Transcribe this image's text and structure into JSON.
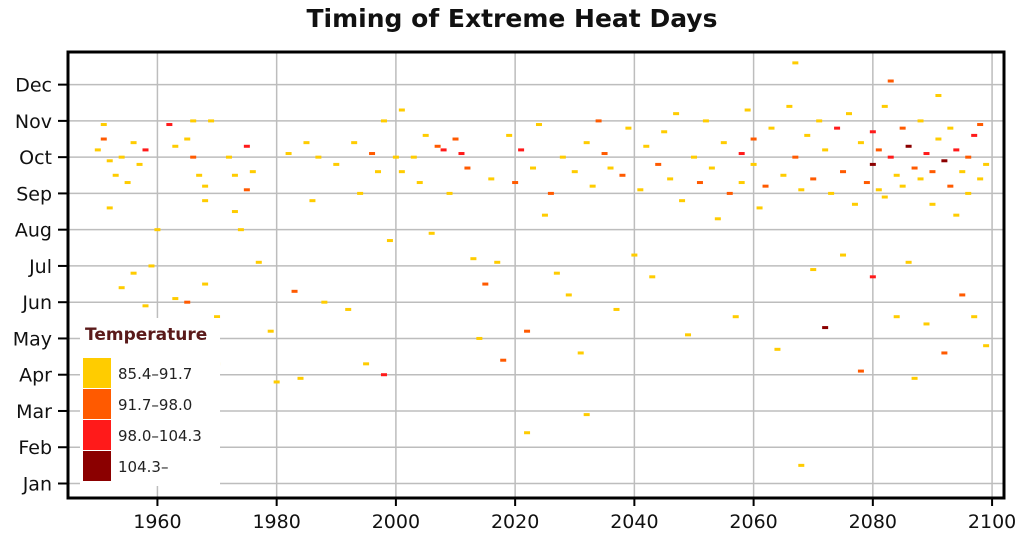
{
  "chart_data": {
    "type": "heatmap",
    "title": "Timing of Extreme Heat Days",
    "xlabel": "",
    "ylabel": "",
    "x_ticks": [
      1960,
      1980,
      2000,
      2020,
      2040,
      2060,
      2080,
      2100
    ],
    "x_range": [
      1945,
      2102
    ],
    "y_ticks": [
      "Jan",
      "Feb",
      "Mar",
      "Apr",
      "May",
      "Jun",
      "Jul",
      "Aug",
      "Sep",
      "Oct",
      "Nov",
      "Dec"
    ],
    "y_range": [
      0.6,
      12.9
    ],
    "grid": true,
    "legend": {
      "title": "Temperature",
      "position": "bottom-left",
      "entries": [
        {
          "label": "85.4–91.7",
          "color": "#ffcc00"
        },
        {
          "label": "91.7–98.0",
          "color": "#ff5a00"
        },
        {
          "label": "98.0–104.3",
          "color": "#ff1a1a"
        },
        {
          "label": "104.3–",
          "color": "#8b0000"
        }
      ]
    },
    "points": [
      [
        1950,
        10.2,
        0
      ],
      [
        1951,
        10.5,
        1
      ],
      [
        1952,
        9.9,
        0
      ],
      [
        1953,
        9.5,
        0
      ],
      [
        1952,
        8.6,
        0
      ],
      [
        1951,
        10.9,
        0
      ],
      [
        1954,
        10.0,
        0
      ],
      [
        1955,
        9.3,
        0
      ],
      [
        1956,
        10.4,
        0
      ],
      [
        1957,
        9.8,
        0
      ],
      [
        1958,
        10.2,
        2
      ],
      [
        1954,
        6.4,
        0
      ],
      [
        1956,
        6.8,
        0
      ],
      [
        1958,
        5.9,
        0
      ],
      [
        1959,
        7.0,
        0
      ],
      [
        1960,
        8.0,
        0
      ],
      [
        1962,
        10.9,
        2
      ],
      [
        1963,
        10.3,
        0
      ],
      [
        1963,
        6.1,
        0
      ],
      [
        1965,
        10.5,
        0
      ],
      [
        1966,
        11.0,
        0
      ],
      [
        1965,
        6.0,
        1
      ],
      [
        1966,
        10.0,
        1
      ],
      [
        1967,
        9.5,
        0
      ],
      [
        1968,
        9.2,
        0
      ],
      [
        1968,
        8.8,
        0
      ],
      [
        1969,
        11.0,
        0
      ],
      [
        1968,
        6.5,
        0
      ],
      [
        1970,
        5.6,
        0
      ],
      [
        1970,
        4.3,
        0
      ],
      [
        1972,
        10.0,
        0
      ],
      [
        1973,
        9.5,
        0
      ],
      [
        1973,
        8.5,
        0
      ],
      [
        1974,
        8.0,
        0
      ],
      [
        1975,
        10.3,
        2
      ],
      [
        1975,
        9.1,
        1
      ],
      [
        1976,
        9.6,
        0
      ],
      [
        1977,
        7.1,
        0
      ],
      [
        1979,
        5.2,
        0
      ],
      [
        1980,
        3.8,
        0
      ],
      [
        1982,
        10.1,
        0
      ],
      [
        1983,
        6.3,
        1
      ],
      [
        1984,
        3.9,
        0
      ],
      [
        1985,
        10.4,
        0
      ],
      [
        1986,
        8.8,
        0
      ],
      [
        1987,
        10.0,
        0
      ],
      [
        1988,
        6.0,
        0
      ],
      [
        1990,
        9.8,
        0
      ],
      [
        1992,
        5.8,
        0
      ],
      [
        1993,
        10.4,
        0
      ],
      [
        1994,
        9.0,
        0
      ],
      [
        1995,
        4.3,
        0
      ],
      [
        1996,
        10.1,
        1
      ],
      [
        1997,
        9.6,
        0
      ],
      [
        1998,
        11.0,
        0
      ],
      [
        1998,
        4.0,
        2
      ],
      [
        1999,
        7.7,
        0
      ],
      [
        2000,
        10.0,
        0
      ],
      [
        2001,
        9.6,
        0
      ],
      [
        2001,
        11.3,
        0
      ],
      [
        2003,
        10.0,
        0
      ],
      [
        2004,
        9.3,
        0
      ],
      [
        2005,
        10.6,
        0
      ],
      [
        2006,
        7.9,
        0
      ],
      [
        2007,
        10.3,
        1
      ],
      [
        2008,
        10.2,
        2
      ],
      [
        2009,
        9.0,
        0
      ],
      [
        2010,
        10.5,
        1
      ],
      [
        2011,
        10.1,
        2
      ],
      [
        2012,
        9.7,
        1
      ],
      [
        2013,
        7.2,
        0
      ],
      [
        2014,
        5.0,
        0
      ],
      [
        2015,
        6.5,
        1
      ],
      [
        2016,
        9.4,
        0
      ],
      [
        2017,
        7.1,
        0
      ],
      [
        2018,
        4.4,
        1
      ],
      [
        2019,
        10.6,
        0
      ],
      [
        2020,
        9.3,
        1
      ],
      [
        2021,
        10.2,
        2
      ],
      [
        2022,
        5.2,
        1
      ],
      [
        2022,
        2.4,
        0
      ],
      [
        2023,
        9.7,
        0
      ],
      [
        2024,
        10.9,
        0
      ],
      [
        2025,
        8.4,
        0
      ],
      [
        2026,
        9.0,
        1
      ],
      [
        2027,
        6.8,
        0
      ],
      [
        2028,
        10.0,
        0
      ],
      [
        2029,
        6.2,
        0
      ],
      [
        2030,
        9.6,
        0
      ],
      [
        2031,
        4.6,
        0
      ],
      [
        2032,
        10.4,
        0
      ],
      [
        2032,
        2.9,
        0
      ],
      [
        2033,
        9.2,
        0
      ],
      [
        2034,
        11.0,
        1
      ],
      [
        2035,
        10.1,
        1
      ],
      [
        2036,
        9.7,
        0
      ],
      [
        2037,
        5.8,
        0
      ],
      [
        2038,
        9.5,
        1
      ],
      [
        2039,
        10.8,
        0
      ],
      [
        2040,
        7.3,
        0
      ],
      [
        2041,
        9.1,
        0
      ],
      [
        2042,
        10.3,
        0
      ],
      [
        2043,
        6.7,
        0
      ],
      [
        2044,
        9.8,
        1
      ],
      [
        2045,
        10.7,
        0
      ],
      [
        2046,
        9.4,
        0
      ],
      [
        2047,
        11.2,
        0
      ],
      [
        2048,
        8.8,
        0
      ],
      [
        2049,
        5.1,
        0
      ],
      [
        2050,
        10.0,
        0
      ],
      [
        2051,
        9.3,
        1
      ],
      [
        2052,
        11.0,
        0
      ],
      [
        2053,
        9.7,
        0
      ],
      [
        2054,
        8.3,
        0
      ],
      [
        2055,
        10.4,
        0
      ],
      [
        2056,
        9.0,
        1
      ],
      [
        2057,
        5.6,
        0
      ],
      [
        2058,
        10.1,
        2
      ],
      [
        2058,
        9.3,
        0
      ],
      [
        2059,
        11.3,
        0
      ],
      [
        2060,
        9.8,
        0
      ],
      [
        2060,
        10.5,
        1
      ],
      [
        2061,
        8.6,
        0
      ],
      [
        2062,
        9.2,
        1
      ],
      [
        2063,
        10.8,
        0
      ],
      [
        2064,
        4.7,
        0
      ],
      [
        2065,
        9.5,
        0
      ],
      [
        2066,
        11.4,
        0
      ],
      [
        2067,
        12.6,
        0
      ],
      [
        2067,
        10.0,
        1
      ],
      [
        2068,
        9.1,
        0
      ],
      [
        2068,
        1.5,
        0
      ],
      [
        2069,
        10.6,
        0
      ],
      [
        2070,
        9.4,
        1
      ],
      [
        2070,
        6.9,
        0
      ],
      [
        2071,
        11.0,
        0
      ],
      [
        2072,
        10.2,
        0
      ],
      [
        2072,
        5.3,
        3
      ],
      [
        2073,
        9.0,
        0
      ],
      [
        2074,
        10.8,
        2
      ],
      [
        2075,
        9.6,
        1
      ],
      [
        2075,
        7.3,
        0
      ],
      [
        2076,
        11.2,
        0
      ],
      [
        2077,
        8.7,
        0
      ],
      [
        2078,
        10.4,
        0
      ],
      [
        2078,
        4.1,
        1
      ],
      [
        2079,
        9.3,
        1
      ],
      [
        2080,
        10.7,
        2
      ],
      [
        2080,
        9.8,
        3
      ],
      [
        2080,
        6.7,
        2
      ],
      [
        2081,
        9.1,
        0
      ],
      [
        2081,
        10.2,
        1
      ],
      [
        2082,
        11.4,
        0
      ],
      [
        2082,
        8.9,
        0
      ],
      [
        2083,
        10.0,
        2
      ],
      [
        2083,
        12.1,
        1
      ],
      [
        2084,
        9.5,
        0
      ],
      [
        2084,
        5.6,
        0
      ],
      [
        2085,
        10.8,
        1
      ],
      [
        2085,
        9.2,
        0
      ],
      [
        2086,
        10.3,
        3
      ],
      [
        2086,
        7.1,
        0
      ],
      [
        2087,
        9.7,
        1
      ],
      [
        2087,
        3.9,
        0
      ],
      [
        2088,
        11.0,
        0
      ],
      [
        2088,
        9.4,
        0
      ],
      [
        2089,
        10.1,
        2
      ],
      [
        2089,
        5.4,
        0
      ],
      [
        2090,
        9.6,
        1
      ],
      [
        2090,
        8.7,
        0
      ],
      [
        2091,
        10.5,
        0
      ],
      [
        2091,
        11.7,
        0
      ],
      [
        2092,
        9.9,
        3
      ],
      [
        2092,
        4.6,
        1
      ],
      [
        2093,
        9.2,
        1
      ],
      [
        2093,
        10.8,
        0
      ],
      [
        2094,
        10.2,
        2
      ],
      [
        2094,
        8.4,
        0
      ],
      [
        2095,
        9.6,
        0
      ],
      [
        2095,
        6.2,
        1
      ],
      [
        2096,
        10.0,
        1
      ],
      [
        2096,
        9.0,
        0
      ],
      [
        2097,
        10.6,
        2
      ],
      [
        2097,
        5.6,
        0
      ],
      [
        2098,
        9.4,
        0
      ],
      [
        2098,
        10.9,
        1
      ],
      [
        2099,
        9.8,
        0
      ],
      [
        2099,
        4.8,
        0
      ]
    ]
  }
}
